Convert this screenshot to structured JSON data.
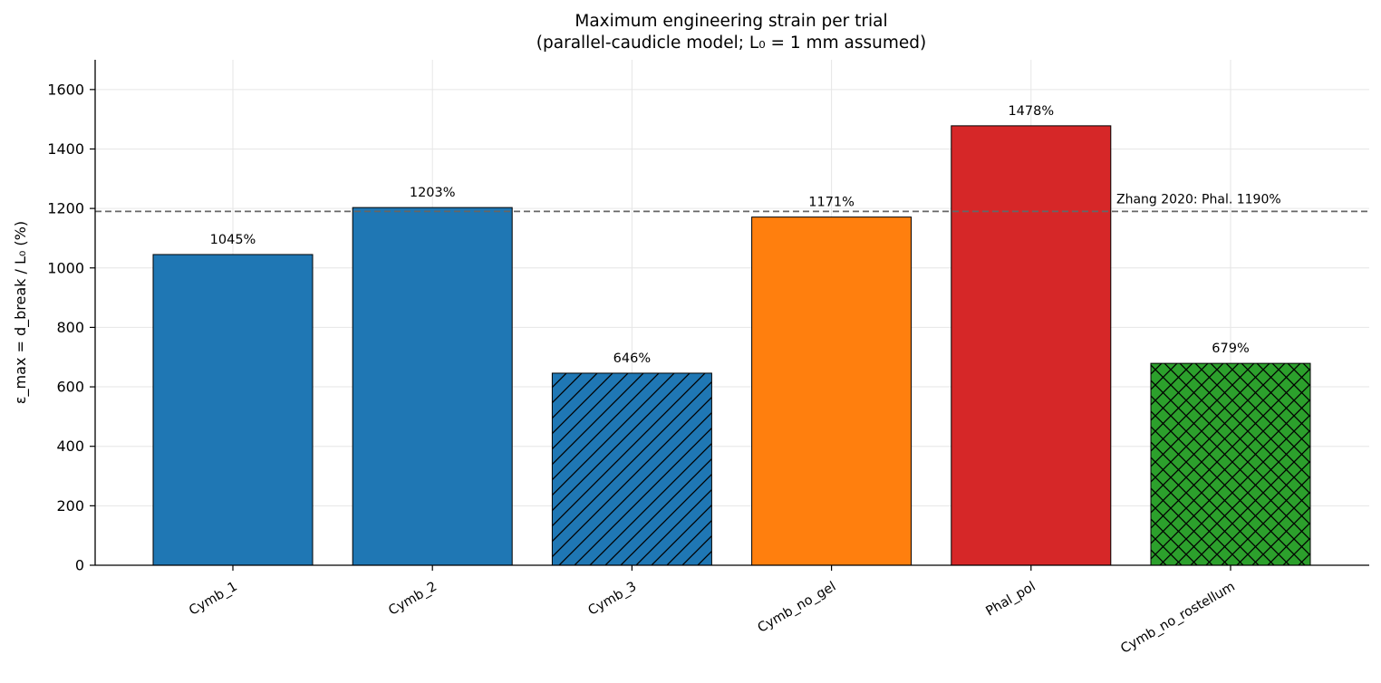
{
  "chart_data": {
    "type": "bar",
    "title": "Maximum engineering strain per trial",
    "subtitle": "(parallel-caudicle model; L₀ = 1 mm assumed)",
    "xlabel": "",
    "ylabel": "ε_max = d_break / L₀  (%)",
    "ylim": [
      0,
      1700
    ],
    "yticks": [
      0,
      200,
      400,
      600,
      800,
      1000,
      1200,
      1400,
      1600
    ],
    "grid": true,
    "categories": [
      "Cymb_1",
      "Cymb_2",
      "Cymb_3",
      "Cymb_no_gel",
      "Phal_pol",
      "Cymb_no_rostellum"
    ],
    "values": [
      1045,
      1203,
      646,
      1171,
      1478,
      679
    ],
    "value_labels": [
      "1045%",
      "1203%",
      "646%",
      "1171%",
      "1478%",
      "679%"
    ],
    "bar_colors": [
      "#1f77b4",
      "#1f77b4",
      "#1f77b4",
      "#ff7f0e",
      "#d62728",
      "#2ca02c"
    ],
    "bar_hatches": [
      "none",
      "none",
      "diagonal",
      "none",
      "none",
      "crosshatch"
    ],
    "reference_line": {
      "value": 1190,
      "label": "Zhang 2020: Phal. 1190%",
      "style": "dashed",
      "color": "#666666"
    }
  }
}
